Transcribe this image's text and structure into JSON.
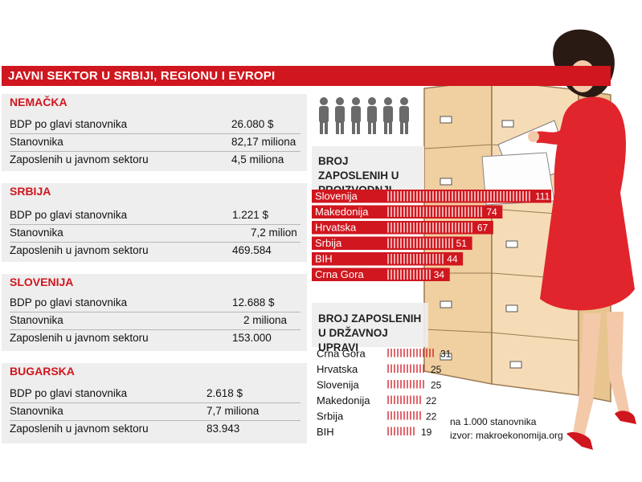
{
  "title": "JAVNI SEKTOR U SRBIJI, REGIONU I EVROPI",
  "countries": [
    {
      "name": "NEMAČKA",
      "rows": [
        {
          "label": "BDP po glavi  stanovnika",
          "value": "26.080 $"
        },
        {
          "label": "Stanovnika",
          "value": "82,17 miliona"
        },
        {
          "label": "Zaposlenih u javnom sektoru",
          "value": "4,5 miliona"
        }
      ]
    },
    {
      "name": "SRBIJA",
      "rows": [
        {
          "label": "BDP po glavi stanovnika",
          "value": "1.221 $"
        },
        {
          "label": "Stanovnika",
          "value": "7,2 milion"
        },
        {
          "label": "Zaposlenih u javnom sektoru",
          "value": "469.584"
        }
      ]
    },
    {
      "name": "SLOVENIJA",
      "rows": [
        {
          "label": "BDP po glavi stanovnika",
          "value": "12.688 $"
        },
        {
          "label": "Stanovnika",
          "value": "2 miliona"
        },
        {
          "label": "Zaposlenih u javnom sektoru",
          "value": "153.000"
        }
      ]
    },
    {
      "name": "BUGARSKA",
      "rows": [
        {
          "label": "BDP po glavi stanovnika",
          "value": "2.618 $"
        },
        {
          "label": "Stanovnika",
          "value": "7,7 miliona"
        },
        {
          "label": "Zaposlenih u javnom sektoru",
          "value": "83.943"
        }
      ]
    }
  ],
  "chart_data": [
    {
      "type": "bar",
      "title": "BROJ ZAPOSLENIH U PROIZVODNJI",
      "categories": [
        "Slovenija",
        "Makedonija",
        "Hrvatska",
        "Srbija",
        "BIH",
        "Crna Gora"
      ],
      "values": [
        111,
        74,
        67,
        51,
        44,
        34
      ],
      "orientation": "horizontal"
    },
    {
      "type": "bar",
      "title": "BROJ ZAPOSLENIH U DRŽAVNOJ UPRAVI",
      "categories": [
        "Crna Gora",
        "Hrvatska",
        "Slovenija",
        "Makedonija",
        "Srbija",
        "BIH"
      ],
      "values": [
        31,
        25,
        25,
        22,
        22,
        19
      ],
      "orientation": "horizontal"
    }
  ],
  "notes": {
    "unit": "na 1.000 stanovnika",
    "source": "izvor: makroekonomija.org"
  },
  "colors": {
    "accent": "#d0161e",
    "panel": "#eeeeee",
    "cabinet": "#f3d6ac"
  }
}
